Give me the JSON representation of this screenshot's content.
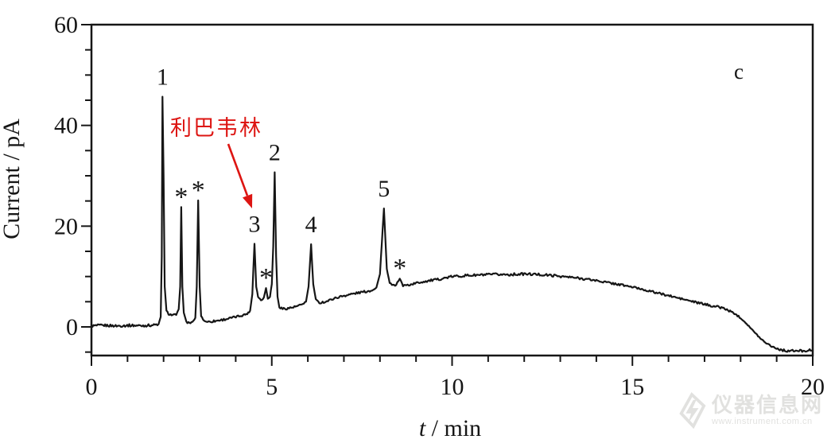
{
  "figure_label": "c",
  "colors": {
    "trace": "#161616",
    "axis": "#161616",
    "annotation_red": "#dd1512",
    "watermark_gray": "#c9c9c5",
    "background": "#ffffff"
  },
  "watermark": {
    "site_name": "仪器信息网",
    "site_url": "www.instrument.com.cn"
  },
  "chart_data": {
    "type": "line",
    "title": "",
    "ylabel": "Current / pA",
    "xlabel_italic": "t",
    "xlabel_rest": " / min",
    "xlim": [
      0,
      20
    ],
    "ylim": [
      -6,
      60
    ],
    "grid": false,
    "x_major_ticks": [
      0,
      5,
      10,
      15,
      20
    ],
    "x_tick_labels": [
      "0",
      "5",
      "10",
      "15",
      "20"
    ],
    "x_minor_step": 1,
    "y_major_ticks": [
      0,
      20,
      40,
      60
    ],
    "y_tick_labels": [
      "0",
      "20",
      "40",
      "60"
    ],
    "y_minor_step": 5,
    "annotation": {
      "text": "利巴韦林",
      "meaning": "Ribavirin",
      "points_to_peak": "3"
    },
    "peak_labels": [
      {
        "label": "1",
        "t": 1.97,
        "current": 45.7
      },
      {
        "label": "*",
        "t": 2.49,
        "current": 23.8
      },
      {
        "label": "*",
        "t": 2.96,
        "current": 25.1
      },
      {
        "label": "3",
        "t": 4.52,
        "current": 16.5
      },
      {
        "label": "*",
        "t": 4.84,
        "current": 7.7
      },
      {
        "label": "2",
        "t": 5.08,
        "current": 30.7
      },
      {
        "label": "4",
        "t": 6.09,
        "current": 16.4
      },
      {
        "label": "5",
        "t": 8.11,
        "current": 23.5
      },
      {
        "label": "*",
        "t": 8.55,
        "current": 9.6
      }
    ],
    "trace": [
      [
        0,
        0.2
      ],
      [
        0.35,
        0.3
      ],
      [
        0.7,
        0.2
      ],
      [
        1.05,
        0.3
      ],
      [
        1.4,
        0.25
      ],
      [
        1.7,
        0.35
      ],
      [
        1.86,
        0.5
      ],
      [
        1.92,
        2
      ],
      [
        1.95,
        14
      ],
      [
        1.97,
        45.7
      ],
      [
        2.0,
        30
      ],
      [
        2.03,
        8
      ],
      [
        2.08,
        3.2
      ],
      [
        2.14,
        2.6
      ],
      [
        2.25,
        2.3
      ],
      [
        2.35,
        2.4
      ],
      [
        2.42,
        3.5
      ],
      [
        2.46,
        8
      ],
      [
        2.49,
        23.8
      ],
      [
        2.52,
        8
      ],
      [
        2.56,
        2.8
      ],
      [
        2.63,
        1
      ],
      [
        2.72,
        0.8
      ],
      [
        2.8,
        0.9
      ],
      [
        2.88,
        1.8
      ],
      [
        2.92,
        8
      ],
      [
        2.96,
        25.1
      ],
      [
        3.0,
        8
      ],
      [
        3.04,
        2.2
      ],
      [
        3.12,
        1.2
      ],
      [
        3.25,
        1
      ],
      [
        3.45,
        1.2
      ],
      [
        3.7,
        1.5
      ],
      [
        3.95,
        1.9
      ],
      [
        4.18,
        2.3
      ],
      [
        4.32,
        2.6
      ],
      [
        4.4,
        3.2
      ],
      [
        4.46,
        6.5
      ],
      [
        4.52,
        16.5
      ],
      [
        4.57,
        8
      ],
      [
        4.62,
        6
      ],
      [
        4.7,
        5.3
      ],
      [
        4.78,
        5.8
      ],
      [
        4.84,
        7.7
      ],
      [
        4.89,
        5.7
      ],
      [
        4.95,
        6
      ],
      [
        5.0,
        8.5
      ],
      [
        5.04,
        16
      ],
      [
        5.08,
        30.7
      ],
      [
        5.12,
        14
      ],
      [
        5.16,
        6
      ],
      [
        5.21,
        3.9
      ],
      [
        5.3,
        3.6
      ],
      [
        5.45,
        3.7
      ],
      [
        5.6,
        3.9
      ],
      [
        5.8,
        4.3
      ],
      [
        5.95,
        5
      ],
      [
        6.02,
        8
      ],
      [
        6.09,
        16.4
      ],
      [
        6.15,
        8.5
      ],
      [
        6.22,
        5.4
      ],
      [
        6.32,
        4.8
      ],
      [
        6.5,
        5
      ],
      [
        6.7,
        5.6
      ],
      [
        6.95,
        6.1
      ],
      [
        7.2,
        6.5
      ],
      [
        7.5,
        6.9
      ],
      [
        7.75,
        7.2
      ],
      [
        7.9,
        7.8
      ],
      [
        8.0,
        10.5
      ],
      [
        8.11,
        23.5
      ],
      [
        8.19,
        11.5
      ],
      [
        8.27,
        8.7
      ],
      [
        8.36,
        8.2
      ],
      [
        8.45,
        8.4
      ],
      [
        8.55,
        9.6
      ],
      [
        8.64,
        8.2
      ],
      [
        8.8,
        8.3
      ],
      [
        9.0,
        8.7
      ],
      [
        9.3,
        9.1
      ],
      [
        9.6,
        9.4
      ],
      [
        10.0,
        10
      ],
      [
        10.4,
        10.2
      ],
      [
        10.8,
        10.3
      ],
      [
        11.2,
        10.4
      ],
      [
        11.6,
        10.4
      ],
      [
        12.0,
        10.5
      ],
      [
        12.4,
        10.4
      ],
      [
        12.8,
        10.2
      ],
      [
        13.2,
        9.9
      ],
      [
        13.6,
        9.6
      ],
      [
        14.0,
        9.2
      ],
      [
        14.4,
        8.7
      ],
      [
        14.8,
        8.2
      ],
      [
        15.2,
        7.6
      ],
      [
        15.6,
        6.9
      ],
      [
        16.0,
        6.2
      ],
      [
        16.4,
        5.5
      ],
      [
        16.8,
        4.8
      ],
      [
        17.2,
        4.2
      ],
      [
        17.5,
        3.8
      ],
      [
        17.8,
        2.8
      ],
      [
        18.0,
        1.8
      ],
      [
        18.2,
        0.4
      ],
      [
        18.4,
        -1.2
      ],
      [
        18.6,
        -2.6
      ],
      [
        18.8,
        -3.6
      ],
      [
        19.0,
        -4.3
      ],
      [
        19.2,
        -4.7
      ],
      [
        19.5,
        -4.8
      ],
      [
        19.8,
        -4.7
      ],
      [
        20.0,
        -4.6
      ]
    ]
  }
}
